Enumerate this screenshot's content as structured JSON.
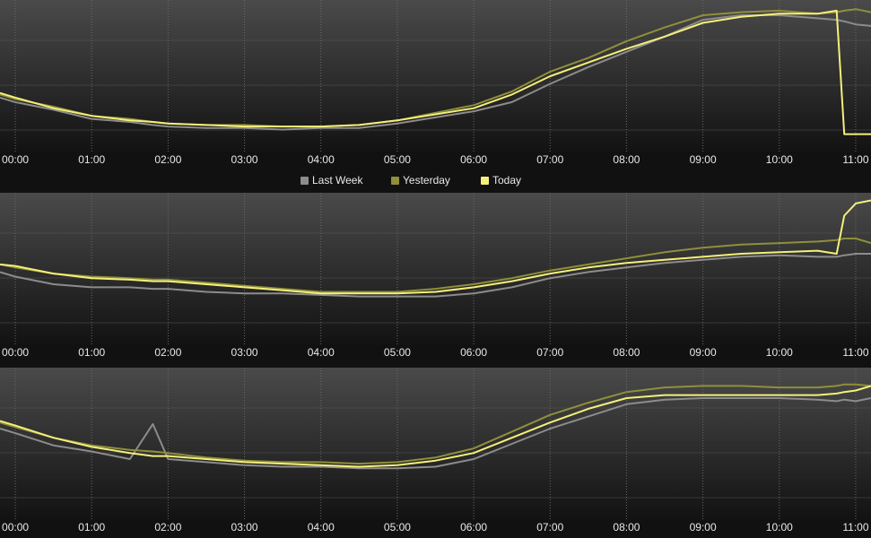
{
  "chart_data": {
    "type": "line",
    "xlim": [
      -0.2,
      11.2
    ],
    "ylim": [
      0,
      100
    ],
    "x": [
      -0.2,
      0,
      0.5,
      1,
      1.5,
      1.8,
      2,
      2.5,
      3,
      3.5,
      4,
      4.5,
      5,
      5.5,
      6,
      6.5,
      7,
      7.5,
      8,
      8.5,
      9,
      9.5,
      10,
      10.5,
      10.75,
      10.85,
      11,
      11.2
    ],
    "series": [
      {
        "name": "Last Week",
        "color": "#8c8c8c"
      },
      {
        "name": "Yesterday",
        "color": "#8f8f3c"
      },
      {
        "name": "Today",
        "color": "#f5f07a"
      }
    ],
    "panels": [
      {
        "xticks": [
          {
            "value": 0,
            "label": "00:00"
          },
          {
            "value": 1,
            "label": "01:00"
          },
          {
            "value": 2,
            "label": "02:00"
          },
          {
            "value": 3,
            "label": "03:00"
          },
          {
            "value": 4,
            "label": "04:00"
          },
          {
            "value": 5,
            "label": "05:00"
          },
          {
            "value": 6,
            "label": "06:00"
          },
          {
            "value": 7,
            "label": "07:00"
          },
          {
            "value": 8,
            "label": "08:00"
          },
          {
            "value": 9,
            "label": "09:00"
          },
          {
            "value": 10,
            "label": "10:00"
          },
          {
            "value": 11,
            "label": "11:00"
          }
        ],
        "series": [
          {
            "values": [
              36,
              33,
              28,
              22,
              20,
              18,
              17,
              16,
              16,
              15,
              16,
              16,
              19,
              23,
              27,
              33,
              45,
              56,
              66,
              76,
              87,
              90,
              90,
              88,
              87,
              86,
              84,
              83
            ]
          },
          {
            "values": [
              38,
              35,
              30,
              24,
              22,
              20,
              19,
              18,
              18,
              17,
              17,
              18,
              21,
              26,
              31,
              40,
              53,
              62,
              73,
              82,
              90,
              92,
              93,
              91,
              92,
              93,
              94,
              92
            ]
          },
          {
            "values": [
              39,
              36,
              29,
              24,
              21,
              20,
              19,
              18,
              17,
              17,
              17,
              18,
              21,
              25,
              29,
              38,
              50,
              59,
              68,
              76,
              85,
              89,
              91,
              91,
              93,
              12,
              12,
              12
            ]
          }
        ]
      },
      {
        "xticks": [
          {
            "value": 0,
            "label": "00:00"
          },
          {
            "value": 1,
            "label": "01:00"
          },
          {
            "value": 2,
            "label": "02:00"
          },
          {
            "value": 3,
            "label": "03:00"
          },
          {
            "value": 4,
            "label": "04:00"
          },
          {
            "value": 5,
            "label": "05:00"
          },
          {
            "value": 6,
            "label": "06:00"
          },
          {
            "value": 7,
            "label": "07:00"
          },
          {
            "value": 8,
            "label": "08:00"
          },
          {
            "value": 9,
            "label": "09:00"
          },
          {
            "value": 10,
            "label": "10:00"
          },
          {
            "value": 11,
            "label": "11:00"
          }
        ],
        "series": [
          {
            "values": [
              48,
              45,
              40,
              38,
              38,
              37,
              37,
              35,
              34,
              34,
              33,
              32,
              32,
              32,
              34,
              38,
              44,
              48,
              51,
              54,
              56,
              58,
              59,
              58,
              58,
              59,
              60,
              60
            ]
          },
          {
            "values": [
              53,
              51,
              47,
              45,
              44,
              43,
              43,
              41,
              39,
              37,
              35,
              35,
              35,
              37,
              40,
              44,
              49,
              53,
              57,
              61,
              64,
              66,
              67,
              68,
              69,
              70,
              70,
              67
            ]
          },
          {
            "values": [
              53,
              52,
              47,
              44,
              43,
              42,
              42,
              40,
              38,
              36,
              34,
              34,
              34,
              35,
              38,
              42,
              47,
              51,
              54,
              56,
              58,
              60,
              61,
              62,
              60,
              85,
              93,
              95
            ]
          }
        ]
      },
      {
        "xticks": [
          {
            "value": 0,
            "label": "00:00"
          },
          {
            "value": 1,
            "label": "01:00"
          },
          {
            "value": 2,
            "label": "02:00"
          },
          {
            "value": 3,
            "label": "03:00"
          },
          {
            "value": 4,
            "label": "04:00"
          },
          {
            "value": 5,
            "label": "05:00"
          },
          {
            "value": 6,
            "label": "06:00"
          },
          {
            "value": 7,
            "label": "07:00"
          },
          {
            "value": 8,
            "label": "08:00"
          },
          {
            "value": 9,
            "label": "09:00"
          },
          {
            "value": 10,
            "label": "10:00"
          },
          {
            "value": 11,
            "label": "11:00"
          }
        ],
        "series": [
          {
            "values": [
              60,
              57,
              49,
              45,
              40,
              63,
              40,
              38,
              36,
              35,
              35,
              34,
              34,
              35,
              40,
              50,
              60,
              68,
              76,
              79,
              80,
              80,
              80,
              79,
              78,
              79,
              78,
              80
            ]
          },
          {
            "values": [
              64,
              61,
              54,
              49,
              46,
              45,
              44,
              41,
              39,
              38,
              38,
              37,
              38,
              41,
              47,
              58,
              69,
              77,
              84,
              87,
              88,
              88,
              87,
              87,
              88,
              89,
              89,
              88
            ]
          },
          {
            "values": [
              65,
              62,
              54,
              48,
              44,
              42,
              42,
              40,
              38,
              37,
              36,
              35,
              36,
              39,
              44,
              54,
              64,
              73,
              80,
              82,
              82,
              82,
              82,
              82,
              83,
              84,
              85,
              88
            ]
          }
        ]
      }
    ]
  }
}
